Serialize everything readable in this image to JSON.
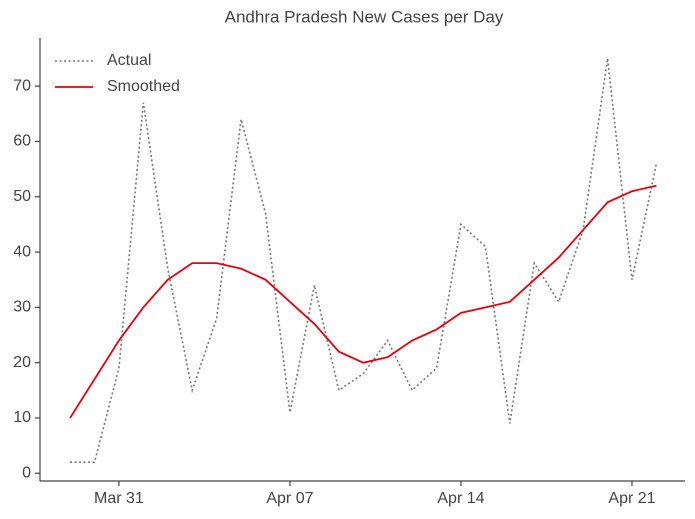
{
  "chart_data": {
    "type": "line",
    "title": "Andhra Pradesh New Cases per Day",
    "categories": [
      null,
      null,
      "Mar 31",
      null,
      null,
      null,
      null,
      null,
      null,
      "Apr 07",
      null,
      null,
      null,
      null,
      null,
      null,
      "Apr 14",
      null,
      null,
      null,
      null,
      null,
      null,
      "Apr 21",
      null
    ],
    "series": [
      {
        "name": "Actual",
        "color": "#777777",
        "style": "dotted",
        "values": [
          2,
          2,
          19,
          67,
          37,
          15,
          28,
          64,
          47,
          11,
          34,
          15,
          18,
          24,
          15,
          19,
          45,
          41,
          9,
          38,
          31,
          44,
          75,
          35,
          56
        ]
      },
      {
        "name": "Smoothed",
        "color": "#e8000b",
        "style": "solid",
        "values": [
          10,
          17,
          24,
          30,
          35,
          38,
          38,
          37,
          35,
          31,
          27,
          22,
          20,
          21,
          24,
          26,
          29,
          30,
          31,
          35,
          39,
          44,
          49,
          51,
          52
        ]
      }
    ],
    "ylim": [
      -1.4,
      78.7
    ],
    "yticks": [
      0,
      10,
      20,
      30,
      40,
      50,
      60,
      70
    ],
    "legend": "upper left",
    "grid": false
  }
}
